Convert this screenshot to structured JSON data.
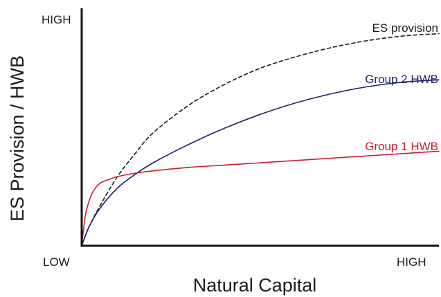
{
  "chart_data": {
    "type": "line",
    "xlabel": "Natural Capital",
    "ylabel": "ES Provision / HWB",
    "x_tick_labels": {
      "low": "LOW",
      "high": "HIGH"
    },
    "y_tick_labels": {
      "high": "HIGH"
    },
    "xlim": [
      0,
      1
    ],
    "ylim": [
      0,
      1
    ],
    "grid": false,
    "legend": "none",
    "series": [
      {
        "name": "ES provision",
        "color": "#1a1a1a",
        "style": "dashed",
        "x": [
          0,
          0.02,
          0.05,
          0.1,
          0.15,
          0.2,
          0.3,
          0.4,
          0.5,
          0.6,
          0.7,
          0.8,
          0.9,
          1.0
        ],
        "y": [
          0,
          0.08,
          0.17,
          0.3,
          0.4,
          0.49,
          0.61,
          0.7,
          0.77,
          0.82,
          0.86,
          0.89,
          0.91,
          0.92
        ]
      },
      {
        "name": "Group 2 HWB",
        "color": "#1f2466",
        "style": "solid",
        "x": [
          0,
          0.02,
          0.05,
          0.1,
          0.15,
          0.2,
          0.3,
          0.4,
          0.5,
          0.6,
          0.7,
          0.8,
          0.9,
          1.0
        ],
        "y": [
          0,
          0.08,
          0.16,
          0.25,
          0.31,
          0.36,
          0.44,
          0.51,
          0.57,
          0.62,
          0.66,
          0.69,
          0.71,
          0.72
        ]
      },
      {
        "name": "Group 1 HWB",
        "color": "#c8202a",
        "style": "solid",
        "x": [
          0,
          0.01,
          0.02,
          0.03,
          0.05,
          0.08,
          0.1,
          0.15,
          0.2,
          0.3,
          0.4,
          0.5,
          0.6,
          0.7,
          0.8,
          0.9,
          1.0
        ],
        "y": [
          0,
          0.13,
          0.19,
          0.23,
          0.27,
          0.29,
          0.3,
          0.315,
          0.325,
          0.34,
          0.35,
          0.36,
          0.37,
          0.38,
          0.39,
          0.4,
          0.41
        ]
      }
    ]
  }
}
